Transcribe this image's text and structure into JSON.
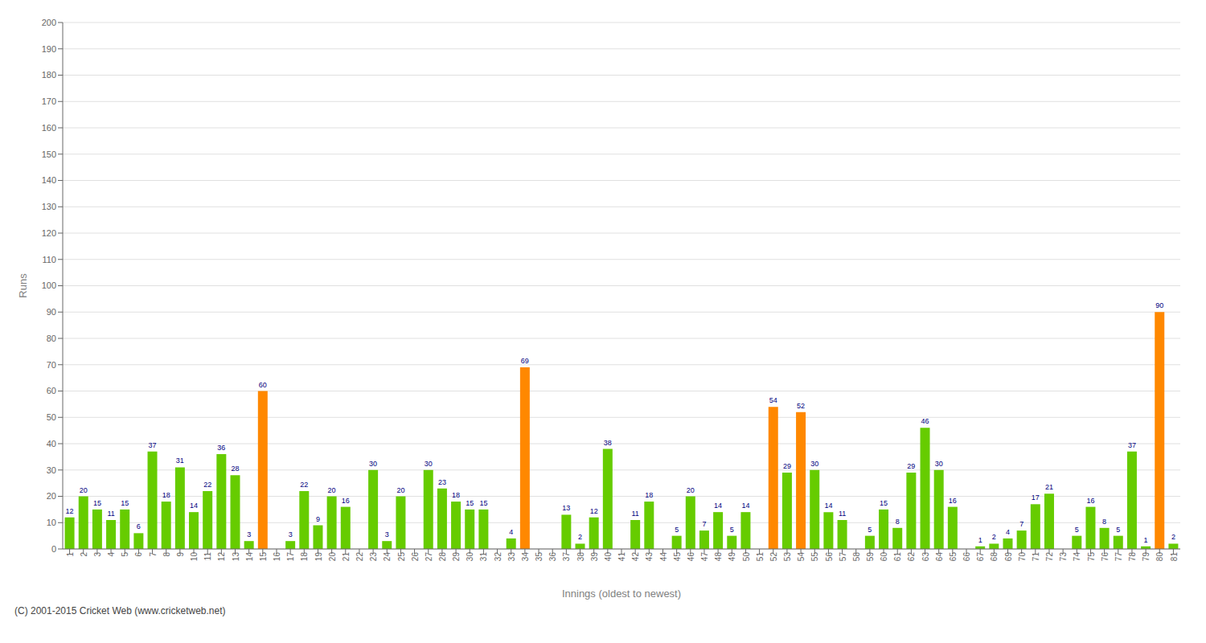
{
  "chart_data": {
    "type": "bar",
    "xlabel": "Innings (oldest to newest)",
    "ylabel": "Runs",
    "categories": [
      "1",
      "2",
      "3",
      "4",
      "5",
      "6",
      "7",
      "8",
      "9",
      "10",
      "11",
      "12",
      "13",
      "14",
      "15",
      "16",
      "17",
      "18",
      "19",
      "20",
      "21",
      "22",
      "23",
      "24",
      "25",
      "26",
      "27",
      "28",
      "29",
      "30",
      "31",
      "32",
      "33",
      "34",
      "35",
      "36",
      "37",
      "38",
      "39",
      "40",
      "41",
      "42",
      "43",
      "44",
      "45",
      "46",
      "47",
      "48",
      "49",
      "50",
      "51",
      "52",
      "53",
      "54",
      "55",
      "56",
      "57",
      "58",
      "59",
      "60",
      "61",
      "62",
      "63",
      "64",
      "65",
      "66",
      "67",
      "68",
      "69",
      "70",
      "71",
      "72",
      "73",
      "74",
      "75",
      "76",
      "77",
      "78",
      "79",
      "80",
      "81"
    ],
    "values": [
      12,
      20,
      15,
      11,
      15,
      6,
      37,
      18,
      31,
      14,
      22,
      36,
      28,
      3,
      60,
      0,
      3,
      22,
      9,
      20,
      16,
      0,
      30,
      3,
      20,
      0,
      30,
      23,
      18,
      15,
      15,
      0,
      4,
      69,
      0,
      0,
      13,
      2,
      12,
      38,
      0,
      11,
      18,
      0,
      5,
      20,
      7,
      14,
      5,
      14,
      0,
      54,
      29,
      52,
      30,
      14,
      11,
      0,
      5,
      15,
      8,
      29,
      46,
      30,
      16,
      0,
      1,
      2,
      4,
      7,
      17,
      21,
      0,
      5,
      16,
      8,
      5,
      37,
      1,
      90,
      2
    ],
    "colors": [
      "#66cc00",
      "#66cc00",
      "#66cc00",
      "#66cc00",
      "#66cc00",
      "#66cc00",
      "#66cc00",
      "#66cc00",
      "#66cc00",
      "#66cc00",
      "#66cc00",
      "#66cc00",
      "#66cc00",
      "#66cc00",
      "#ff8800",
      "#66cc00",
      "#66cc00",
      "#66cc00",
      "#66cc00",
      "#66cc00",
      "#66cc00",
      "#66cc00",
      "#66cc00",
      "#66cc00",
      "#66cc00",
      "#66cc00",
      "#66cc00",
      "#66cc00",
      "#66cc00",
      "#66cc00",
      "#66cc00",
      "#66cc00",
      "#66cc00",
      "#ff8800",
      "#66cc00",
      "#66cc00",
      "#66cc00",
      "#66cc00",
      "#66cc00",
      "#66cc00",
      "#66cc00",
      "#66cc00",
      "#66cc00",
      "#66cc00",
      "#66cc00",
      "#66cc00",
      "#66cc00",
      "#66cc00",
      "#66cc00",
      "#66cc00",
      "#66cc00",
      "#ff8800",
      "#66cc00",
      "#ff8800",
      "#66cc00",
      "#66cc00",
      "#66cc00",
      "#66cc00",
      "#66cc00",
      "#66cc00",
      "#66cc00",
      "#66cc00",
      "#66cc00",
      "#66cc00",
      "#66cc00",
      "#66cc00",
      "#66cc00",
      "#66cc00",
      "#66cc00",
      "#66cc00",
      "#66cc00",
      "#66cc00",
      "#66cc00",
      "#66cc00",
      "#66cc00",
      "#66cc00",
      "#66cc00",
      "#66cc00",
      "#66cc00",
      "#ff8800",
      "#66cc00"
    ],
    "ylim": [
      0,
      200
    ],
    "yticks": [
      0,
      10,
      20,
      30,
      40,
      50,
      60,
      70,
      80,
      90,
      100,
      110,
      120,
      130,
      140,
      150,
      160,
      170,
      180,
      190,
      200
    ],
    "grid": true,
    "data_labels": true,
    "annotations": [
      "(C) 2001-2015 Cricket Web (www.cricketweb.net)"
    ]
  }
}
